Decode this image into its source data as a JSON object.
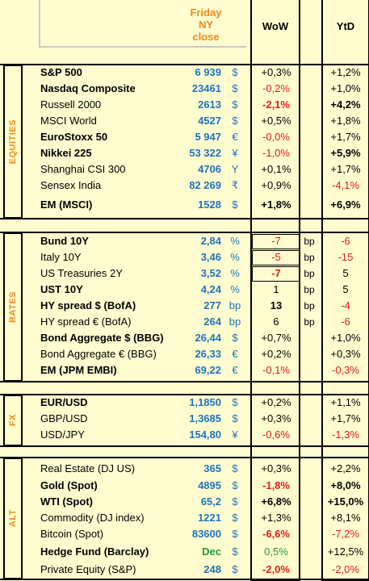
{
  "header": {
    "close_label": [
      "Friday",
      "NY",
      "close"
    ],
    "wow": "WoW",
    "ytd": "YtD"
  },
  "sections": {
    "equities": "EQUITIES",
    "rates": "RATES",
    "fx": "FX",
    "alt": "ALT"
  },
  "rows": [
    {
      "name": "S&P 500",
      "value": "6 939",
      "unit": "$",
      "wow": "+0,3%",
      "ytd": "+1,2%"
    },
    {
      "name": "Nasdaq Composite",
      "value": "23461",
      "unit": "$",
      "wow": "-0,2%",
      "ytd": "+1,0%"
    },
    {
      "name": "Russell 2000",
      "value": "2613",
      "unit": "$",
      "wow": "-2,1%",
      "ytd": "+4,2%"
    },
    {
      "name": "MSCI World",
      "value": "4527",
      "unit": "$",
      "wow": "+0,5%",
      "ytd": "+1,8%"
    },
    {
      "name": "EuroStoxx 50",
      "value": "5 947",
      "unit": "€",
      "wow": "-0,0%",
      "ytd": "+1,7%"
    },
    {
      "name": "Nikkei 225",
      "value": "53 322",
      "unit": "¥",
      "wow": "-1,0%",
      "ytd": "+5,9%"
    },
    {
      "name": "Shanghai CSI 300",
      "value": "4706",
      "unit": "Y",
      "wow": "+0,1%",
      "ytd": "+1,7%"
    },
    {
      "name": "Sensex India",
      "value": "82 269",
      "unit": "₹",
      "wow": "+0,9%",
      "ytd": "-4,1%"
    },
    {
      "name": "EM (MSCI)",
      "value": "1528",
      "unit": "$",
      "wow": "+1,8%",
      "ytd": "+6,9%"
    },
    {
      "name": "Bund 10Y",
      "value": "2,84",
      "unit": "%",
      "wow": "-7",
      "wow_unit": "bp",
      "ytd": "-6"
    },
    {
      "name": "Italy 10Y",
      "value": "3,46",
      "unit": "%",
      "wow": "-5",
      "wow_unit": "bp",
      "ytd": "-15"
    },
    {
      "name": "US Treasuries 2Y",
      "value": "3,52",
      "unit": "%",
      "wow": "-7",
      "wow_unit": "bp",
      "ytd": "5"
    },
    {
      "name": "UST 10Y",
      "value": "4,24",
      "unit": "%",
      "wow": "1",
      "wow_unit": "bp",
      "ytd": "5"
    },
    {
      "name": "HY spread $ (BofA)",
      "value": "277",
      "unit": "bp",
      "wow": "13",
      "wow_unit": "bp",
      "ytd": "-4"
    },
    {
      "name": "HY spread € (BofA)",
      "value": "264",
      "unit": "bp",
      "wow": "6",
      "wow_unit": "bp",
      "ytd": "-6"
    },
    {
      "name": "Bond Aggregate $ (BBG)",
      "value": "26,44",
      "unit": "$",
      "wow": "+0,7%",
      "ytd": "+1,0%"
    },
    {
      "name": "Bond Aggregate € (BBG)",
      "value": "26,33",
      "unit": "€",
      "wow": "+0,2%",
      "ytd": "+0,3%"
    },
    {
      "name": "EM (JPM EMBI)",
      "value": "69,22",
      "unit": "€",
      "wow": "-0,1%",
      "ytd": "-0,3%"
    },
    {
      "name": "EUR/USD",
      "value": "1,1850",
      "unit": "$",
      "wow": "+0,2%",
      "ytd": "+1,1%"
    },
    {
      "name": "GBP/USD",
      "value": "1,3685",
      "unit": "$",
      "wow": "+0,3%",
      "ytd": "+1,7%"
    },
    {
      "name": "USD/JPY",
      "value": "154,80",
      "unit": "¥",
      "wow": "-0,6%",
      "ytd": "-1,3%"
    },
    {
      "name": "Real Estate (DJ US)",
      "value": "365",
      "unit": "$",
      "wow": "+0,3%",
      "ytd": "+2,2%"
    },
    {
      "name": "Gold (Spot)",
      "value": "4895",
      "unit": "$",
      "wow": "-1,8%",
      "ytd": "+8,0%"
    },
    {
      "name": "WTI (Spot)",
      "value": "65,2",
      "unit": "$",
      "wow": "+6,8%",
      "ytd": "+15,0%"
    },
    {
      "name": "Commodity (DJ index)",
      "value": "1221",
      "unit": "$",
      "wow": "+1,3%",
      "ytd": "+8,1%"
    },
    {
      "name": "Bitcoin (Spot)",
      "value": "83600",
      "unit": "$",
      "wow": "-6,6%",
      "ytd": "-7,2%"
    },
    {
      "name": "Hedge Fund (Barclay)",
      "value": "Dec",
      "unit": "$",
      "wow": "0,5%",
      "ytd": "+12,5%"
    },
    {
      "name": "Private Equity (S&P)",
      "value": "248",
      "unit": "$",
      "wow": "-2,0%",
      "ytd": "-2,0%"
    }
  ]
}
